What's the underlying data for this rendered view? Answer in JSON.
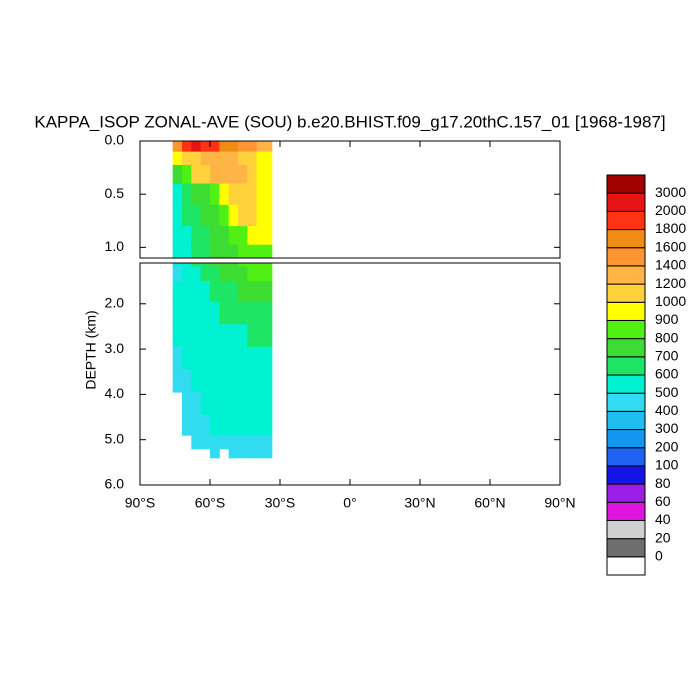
{
  "chart_data": {
    "type": "contour",
    "title": "KAPPA_ISOP ZONAL-AVE (SOU) b.e20.BHIST.f09_g17.20thC.157_01 [1968-1987]",
    "ylabel": "DEPTH (km)",
    "xlim": [
      -90,
      90
    ],
    "xticks": [
      {
        "value": -90,
        "label": "90°S"
      },
      {
        "value": -60,
        "label": "60°S"
      },
      {
        "value": -30,
        "label": "30°S"
      },
      {
        "value": 0,
        "label": "0°"
      },
      {
        "value": 30,
        "label": "30°N"
      },
      {
        "value": 60,
        "label": "60°N"
      },
      {
        "value": 90,
        "label": "90°N"
      }
    ],
    "panels": [
      {
        "ylim": [
          0,
          1.1
        ],
        "yticks": [
          {
            "value": 0,
            "label": "0.0"
          },
          {
            "value": 0.5,
            "label": "0.5"
          },
          {
            "value": 1,
            "label": "1.0"
          }
        ]
      },
      {
        "ylim": [
          1.1,
          6.0
        ],
        "yticks": [
          {
            "value": 2,
            "label": "2.0"
          },
          {
            "value": 3,
            "label": "3.0"
          },
          {
            "value": 4,
            "label": "4.0"
          },
          {
            "value": 5,
            "label": "5.0"
          },
          {
            "value": 6,
            "label": "6.0"
          }
        ]
      }
    ],
    "levels": [
      0,
      20,
      40,
      60,
      80,
      100,
      200,
      300,
      400,
      500,
      600,
      700,
      800,
      900,
      1000,
      1200,
      1400,
      1600,
      1800,
      2000,
      3000
    ],
    "colors": [
      "#ffffff",
      "#6e6e6e",
      "#d0d0d0",
      "#e014e0",
      "#9a1ee6",
      "#1414e6",
      "#1e64f0",
      "#1496f0",
      "#1ebef0",
      "#32dcf0",
      "#00f0d2",
      "#1ee664",
      "#3cdc32",
      "#50f014",
      "#ffff00",
      "#ffd23c",
      "#ffb446",
      "#ff9632",
      "#f08c14",
      "#ff3214",
      "#e61414",
      "#a00000"
    ],
    "field": {
      "lat": [
        -74,
        -70,
        -66,
        -62,
        -58,
        -54,
        -50,
        -46,
        -42,
        -38,
        -35
      ],
      "depth": [
        0.05,
        0.15,
        0.3,
        0.5,
        0.7,
        0.9,
        1.05,
        1.3,
        1.7,
        2.2,
        2.7,
        3.2,
        3.7,
        4.2,
        4.7,
        5.1,
        5.3
      ],
      "values": [
        [
          1500,
          1800,
          2000,
          1900,
          1800,
          1700,
          1600,
          1500,
          1400,
          1300,
          1200
        ],
        [
          900,
          1000,
          1100,
          1200,
          1300,
          1300,
          1200,
          1100,
          1000,
          950,
          900
        ],
        [
          700,
          800,
          1000,
          1100,
          1200,
          1300,
          1300,
          1200,
          1000,
          900,
          900
        ],
        [
          550,
          650,
          700,
          750,
          800,
          950,
          1100,
          1150,
          1100,
          950,
          900
        ],
        [
          520,
          600,
          650,
          700,
          750,
          800,
          900,
          1050,
          1050,
          950,
          900
        ],
        [
          520,
          560,
          600,
          650,
          700,
          750,
          800,
          850,
          900,
          900,
          900
        ],
        [
          500,
          550,
          600,
          650,
          700,
          750,
          780,
          800,
          850,
          850,
          850
        ],
        [
          480,
          520,
          560,
          600,
          650,
          720,
          750,
          780,
          820,
          850,
          850
        ],
        [
          500,
          520,
          550,
          580,
          620,
          650,
          680,
          700,
          720,
          720,
          720
        ],
        [
          500,
          520,
          550,
          560,
          580,
          600,
          620,
          650,
          680,
          680,
          680
        ],
        [
          500,
          520,
          540,
          550,
          560,
          570,
          580,
          590,
          600,
          610,
          620
        ],
        [
          480,
          510,
          520,
          530,
          540,
          550,
          550,
          560,
          560,
          570,
          570
        ],
        [
          450,
          490,
          520,
          530,
          540,
          550,
          550,
          550,
          550,
          560,
          560
        ],
        [
          null,
          450,
          480,
          500,
          520,
          530,
          520,
          520,
          520,
          530,
          530
        ],
        [
          null,
          420,
          460,
          480,
          500,
          500,
          500,
          500,
          500,
          500,
          500
        ],
        [
          null,
          null,
          420,
          440,
          450,
          450,
          440,
          430,
          430,
          430,
          430
        ],
        [
          null,
          null,
          null,
          null,
          420,
          null,
          420,
          420,
          420,
          420,
          420
        ]
      ]
    }
  }
}
